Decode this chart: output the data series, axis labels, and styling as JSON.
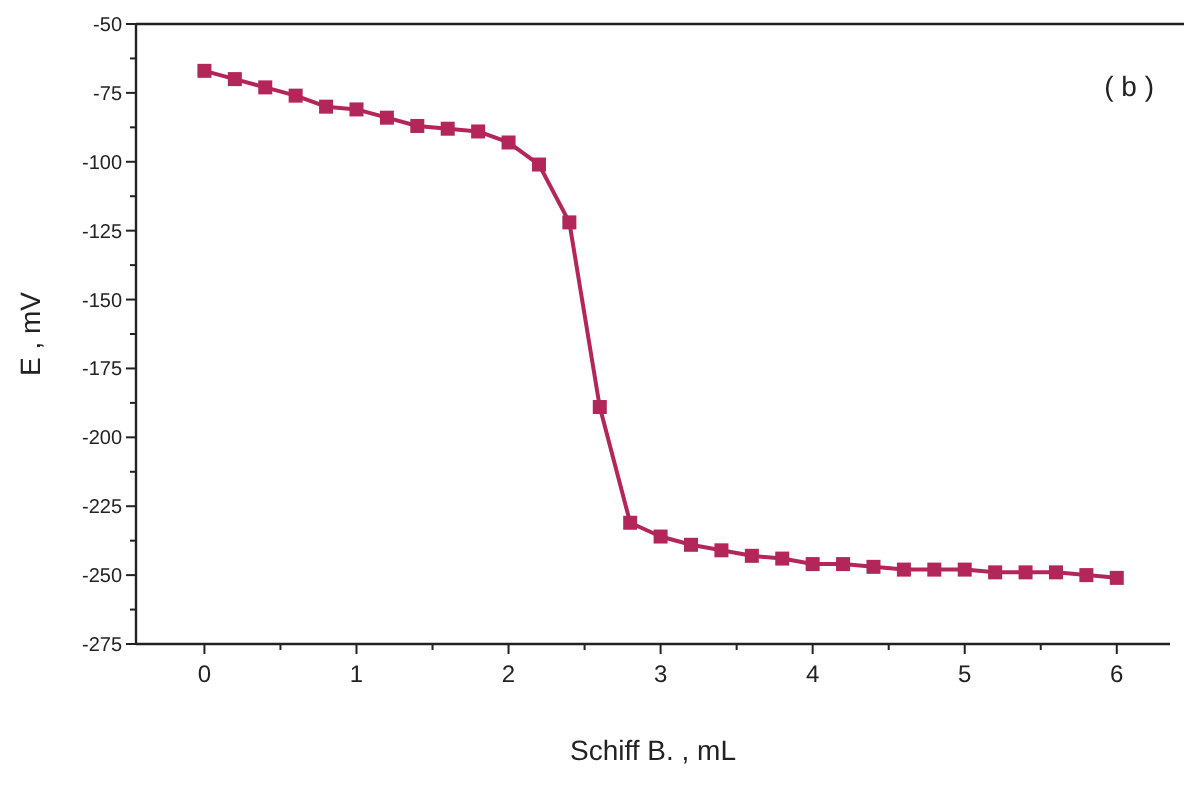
{
  "chart_data": {
    "type": "line",
    "xlabel": "Schiff B. , mL",
    "ylabel": "E , mV",
    "annotations": [
      "( b )"
    ],
    "x": [
      0,
      0.2,
      0.4,
      0.6,
      0.8,
      1.0,
      1.2,
      1.4,
      1.6,
      1.8,
      2.0,
      2.2,
      2.4,
      2.6,
      2.8,
      3.0,
      3.2,
      3.4,
      3.6,
      3.8,
      4.0,
      4.2,
      4.4,
      4.6,
      4.8,
      5.0,
      5.2,
      5.4,
      5.6,
      5.8,
      6.0
    ],
    "series": [
      {
        "color": "#b3265a",
        "values": [
          -67,
          -70,
          -73,
          -76,
          -80,
          -81,
          -84,
          -87,
          -88,
          -89,
          -93,
          -101,
          -122,
          -189,
          -231,
          -236,
          -239,
          -241,
          -243,
          -244,
          -246,
          -246,
          -247,
          -248,
          -248,
          -248,
          -249,
          -249,
          -249,
          -250,
          -251
        ]
      }
    ],
    "marker": "square",
    "line_style": "solid",
    "grid": false,
    "xlim": [
      -0.45,
      6.35
    ],
    "xticks": [
      0,
      {
        "value": 0.5,
        "label": null
      },
      1,
      {
        "value": 1.5,
        "label": null
      },
      2,
      {
        "value": 2.5,
        "label": null
      },
      3,
      {
        "value": 3.5,
        "label": null
      },
      4,
      {
        "value": 4.5,
        "label": null
      },
      5,
      {
        "value": 5.5,
        "label": null
      },
      6
    ],
    "ylim": [
      -275,
      -50
    ],
    "yticks": [
      -275,
      {
        "value": -262.5,
        "label": null
      },
      -250,
      {
        "value": -237.5,
        "label": null
      },
      -225,
      {
        "value": -212.5,
        "label": null
      },
      -200,
      {
        "value": -187.5,
        "label": null
      },
      -175,
      {
        "value": -162.5,
        "label": null
      },
      -150,
      {
        "value": -137.5,
        "label": null
      },
      -125,
      {
        "value": -112.5,
        "label": null
      },
      -100,
      {
        "value": -87.5,
        "label": null
      },
      -75,
      {
        "value": -62.5,
        "label": null
      },
      -50
    ]
  }
}
